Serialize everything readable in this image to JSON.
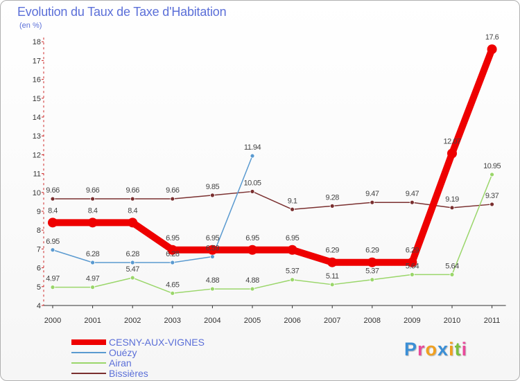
{
  "chart_data": {
    "type": "line",
    "title": "Evolution du Taux de Taxe d'Habitation",
    "subtitle": "(en %)",
    "categories": [
      "2000",
      "2001",
      "2002",
      "2003",
      "2004",
      "2005",
      "2006",
      "2007",
      "2008",
      "2009",
      "2010",
      "2011"
    ],
    "y_ticks": [
      "4",
      "5",
      "6",
      "7",
      "8",
      "9",
      "10",
      "11",
      "12",
      "13",
      "14",
      "15",
      "16",
      "17",
      "18"
    ],
    "ylim": [
      4,
      18
    ],
    "series": [
      {
        "name": "Bissières",
        "color": "#7a2f2f",
        "values": [
          9.66,
          9.66,
          9.66,
          9.66,
          9.85,
          10.05,
          9.1,
          9.28,
          9.47,
          9.47,
          9.19,
          9.37
        ],
        "labels": [
          "9.66",
          "9.66",
          "9.66",
          "9.66",
          "9.85",
          "10.05",
          "9.1",
          "9.28",
          "9.47",
          "9.47",
          "9.19",
          "9.37"
        ]
      },
      {
        "name": "Airan",
        "color": "#9ad66a",
        "values": [
          4.97,
          4.97,
          5.47,
          4.65,
          4.88,
          4.88,
          5.37,
          5.11,
          5.37,
          5.64,
          5.64,
          10.95
        ],
        "labels": [
          "4.97",
          "4.97",
          "5.47",
          "4.65",
          "4.88",
          "4.88",
          "5.37",
          "5.11",
          "5.37",
          "5.64",
          "5.64",
          "10.95"
        ]
      },
      {
        "name": "Ouézy",
        "color": "#5a9ad0",
        "values": [
          6.95,
          6.28,
          6.28,
          6.28,
          6.59,
          11.94,
          null,
          null,
          null,
          null,
          null,
          null
        ],
        "labels": [
          "6.95",
          "6.28",
          "6.28",
          "6.28",
          "6.59",
          "11.94",
          null,
          null,
          null,
          null,
          null,
          null
        ]
      },
      {
        "name": "CESNY-AUX-VIGNES",
        "color": "#ee0000",
        "values": [
          8.4,
          8.4,
          8.4,
          6.95,
          6.95,
          6.95,
          6.95,
          6.29,
          6.29,
          6.29,
          12.07,
          17.6
        ],
        "labels": [
          "8.4",
          "8.4",
          "8.4",
          "6.95",
          "6.95",
          "6.95",
          "6.95",
          "6.29",
          "6.29",
          "6.29",
          "12.07",
          "17.6"
        ]
      }
    ],
    "legend": [
      "CESNY-AUX-VIGNES",
      "Ouézy",
      "Airan",
      "Bissières"
    ]
  },
  "logo": {
    "letters": [
      "P",
      "r",
      "o",
      "x",
      "i",
      "t",
      "i"
    ],
    "colors": [
      "#3b8fd6",
      "#e84a9a",
      "#f0a020",
      "#3b8fd6",
      "#f0a020",
      "#7ac040",
      "#e84a9a"
    ]
  }
}
